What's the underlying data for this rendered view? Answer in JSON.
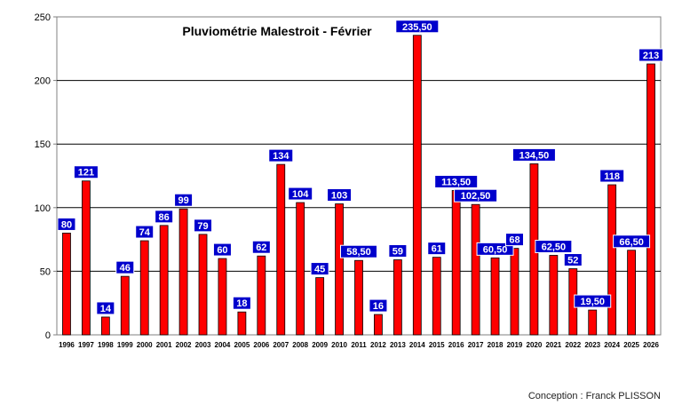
{
  "credit": "Conception : Franck PLISSON",
  "chart_data": {
    "type": "bar",
    "title": "Pluviométrie Malestroit - Février",
    "xlabel": "",
    "ylabel": "",
    "ylim": [
      0,
      250
    ],
    "yticks": [
      0,
      50,
      100,
      150,
      200,
      250
    ],
    "grid": true,
    "bar_color": "#ff0000",
    "label_bg_color": "#0000cc",
    "categories": [
      "1996",
      "1997",
      "1998",
      "1999",
      "2000",
      "2001",
      "2002",
      "2003",
      "2004",
      "2005",
      "2006",
      "2007",
      "2008",
      "2009",
      "2010",
      "2011",
      "2012",
      "2013",
      "2014",
      "2015",
      "2016",
      "2017",
      "2018",
      "2019",
      "2020",
      "2021",
      "2022",
      "2023",
      "2024",
      "2025",
      "2026"
    ],
    "values": [
      80,
      121,
      14,
      46,
      74,
      86,
      99,
      79,
      60,
      18,
      62,
      134,
      104,
      45,
      103,
      58.5,
      16,
      59,
      235.5,
      61,
      113.5,
      102.5,
      60.5,
      68,
      134.5,
      62.5,
      52,
      19.5,
      118,
      66.5,
      213
    ],
    "data_labels": [
      "80",
      "121",
      "14",
      "46",
      "74",
      "86",
      "99",
      "79",
      "60",
      "18",
      "62",
      "134",
      "104",
      "45",
      "103",
      "58,50",
      "16",
      "59",
      "235,50",
      "61",
      "113,50",
      "102,50",
      "60,50",
      "68",
      "134,50",
      "62,50",
      "52",
      "19,50",
      "118",
      "66,50",
      "213"
    ]
  }
}
